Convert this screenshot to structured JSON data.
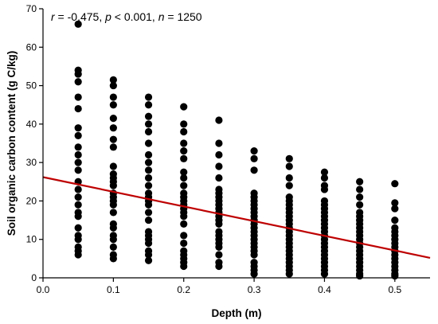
{
  "chart_data": {
    "type": "scatter",
    "title": "",
    "xlabel": "Depth (m)",
    "ylabel": "Soil organic carbon content (g C/kg)",
    "xlim": [
      0.0,
      0.55
    ],
    "ylim": [
      0,
      70
    ],
    "xticks": [
      "0.0",
      "0.1",
      "0.2",
      "0.3",
      "0.4",
      "0.5"
    ],
    "yticks": [
      "0",
      "10",
      "20",
      "30",
      "40",
      "50",
      "60",
      "70"
    ],
    "grid": false,
    "point_color": "#000000",
    "trendline": {
      "x": [
        0.0,
        0.55
      ],
      "y": [
        26.2,
        5.2
      ],
      "color": "#c00000"
    },
    "annotation": {
      "r_symbol": "r",
      "r_rest": " = -0.475, ",
      "p_symbol": "p",
      "p_rest": " < 0.001, ",
      "n_symbol": "n",
      "n_rest": " = 1250"
    },
    "points": [
      {
        "x": 0.05,
        "y": 66
      },
      {
        "x": 0.05,
        "y": 54
      },
      {
        "x": 0.05,
        "y": 53
      },
      {
        "x": 0.05,
        "y": 51
      },
      {
        "x": 0.05,
        "y": 47
      },
      {
        "x": 0.05,
        "y": 44
      },
      {
        "x": 0.05,
        "y": 39
      },
      {
        "x": 0.05,
        "y": 37
      },
      {
        "x": 0.05,
        "y": 34
      },
      {
        "x": 0.05,
        "y": 32
      },
      {
        "x": 0.05,
        "y": 30
      },
      {
        "x": 0.05,
        "y": 28
      },
      {
        "x": 0.05,
        "y": 25
      },
      {
        "x": 0.05,
        "y": 23
      },
      {
        "x": 0.05,
        "y": 21
      },
      {
        "x": 0.05,
        "y": 19
      },
      {
        "x": 0.05,
        "y": 17
      },
      {
        "x": 0.05,
        "y": 16
      },
      {
        "x": 0.05,
        "y": 13
      },
      {
        "x": 0.05,
        "y": 11
      },
      {
        "x": 0.05,
        "y": 10
      },
      {
        "x": 0.05,
        "y": 8
      },
      {
        "x": 0.05,
        "y": 7
      },
      {
        "x": 0.05,
        "y": 6
      },
      {
        "x": 0.1,
        "y": 51.5
      },
      {
        "x": 0.1,
        "y": 50
      },
      {
        "x": 0.1,
        "y": 47
      },
      {
        "x": 0.1,
        "y": 45
      },
      {
        "x": 0.1,
        "y": 41.5
      },
      {
        "x": 0.1,
        "y": 39
      },
      {
        "x": 0.1,
        "y": 36
      },
      {
        "x": 0.1,
        "y": 34
      },
      {
        "x": 0.1,
        "y": 29
      },
      {
        "x": 0.1,
        "y": 27
      },
      {
        "x": 0.1,
        "y": 26
      },
      {
        "x": 0.1,
        "y": 25
      },
      {
        "x": 0.1,
        "y": 24
      },
      {
        "x": 0.1,
        "y": 22
      },
      {
        "x": 0.1,
        "y": 21
      },
      {
        "x": 0.1,
        "y": 20
      },
      {
        "x": 0.1,
        "y": 19
      },
      {
        "x": 0.1,
        "y": 17
      },
      {
        "x": 0.1,
        "y": 14
      },
      {
        "x": 0.1,
        "y": 13
      },
      {
        "x": 0.1,
        "y": 11
      },
      {
        "x": 0.1,
        "y": 10
      },
      {
        "x": 0.1,
        "y": 8
      },
      {
        "x": 0.1,
        "y": 6
      },
      {
        "x": 0.1,
        "y": 5
      },
      {
        "x": 0.15,
        "y": 47
      },
      {
        "x": 0.15,
        "y": 45
      },
      {
        "x": 0.15,
        "y": 42
      },
      {
        "x": 0.15,
        "y": 40
      },
      {
        "x": 0.15,
        "y": 38
      },
      {
        "x": 0.15,
        "y": 35
      },
      {
        "x": 0.15,
        "y": 32
      },
      {
        "x": 0.15,
        "y": 30
      },
      {
        "x": 0.15,
        "y": 28
      },
      {
        "x": 0.15,
        "y": 26
      },
      {
        "x": 0.15,
        "y": 24
      },
      {
        "x": 0.15,
        "y": 22
      },
      {
        "x": 0.15,
        "y": 21
      },
      {
        "x": 0.15,
        "y": 20
      },
      {
        "x": 0.15,
        "y": 19
      },
      {
        "x": 0.15,
        "y": 17
      },
      {
        "x": 0.15,
        "y": 15
      },
      {
        "x": 0.15,
        "y": 12
      },
      {
        "x": 0.15,
        "y": 11
      },
      {
        "x": 0.15,
        "y": 10
      },
      {
        "x": 0.15,
        "y": 9
      },
      {
        "x": 0.15,
        "y": 7
      },
      {
        "x": 0.15,
        "y": 6
      },
      {
        "x": 0.15,
        "y": 4.5
      },
      {
        "x": 0.2,
        "y": 44.5
      },
      {
        "x": 0.2,
        "y": 40
      },
      {
        "x": 0.2,
        "y": 38
      },
      {
        "x": 0.2,
        "y": 35
      },
      {
        "x": 0.2,
        "y": 33
      },
      {
        "x": 0.2,
        "y": 31
      },
      {
        "x": 0.2,
        "y": 27.5
      },
      {
        "x": 0.2,
        "y": 26
      },
      {
        "x": 0.2,
        "y": 24
      },
      {
        "x": 0.2,
        "y": 22
      },
      {
        "x": 0.2,
        "y": 21
      },
      {
        "x": 0.2,
        "y": 20
      },
      {
        "x": 0.2,
        "y": 19
      },
      {
        "x": 0.2,
        "y": 18
      },
      {
        "x": 0.2,
        "y": 17
      },
      {
        "x": 0.2,
        "y": 16
      },
      {
        "x": 0.2,
        "y": 14
      },
      {
        "x": 0.2,
        "y": 11
      },
      {
        "x": 0.2,
        "y": 9
      },
      {
        "x": 0.2,
        "y": 7
      },
      {
        "x": 0.2,
        "y": 6
      },
      {
        "x": 0.2,
        "y": 5
      },
      {
        "x": 0.2,
        "y": 4
      },
      {
        "x": 0.2,
        "y": 3
      },
      {
        "x": 0.25,
        "y": 41
      },
      {
        "x": 0.25,
        "y": 35
      },
      {
        "x": 0.25,
        "y": 32
      },
      {
        "x": 0.25,
        "y": 29
      },
      {
        "x": 0.25,
        "y": 26
      },
      {
        "x": 0.25,
        "y": 23
      },
      {
        "x": 0.25,
        "y": 22
      },
      {
        "x": 0.25,
        "y": 21
      },
      {
        "x": 0.25,
        "y": 20
      },
      {
        "x": 0.25,
        "y": 19
      },
      {
        "x": 0.25,
        "y": 18
      },
      {
        "x": 0.25,
        "y": 17
      },
      {
        "x": 0.25,
        "y": 16
      },
      {
        "x": 0.25,
        "y": 15
      },
      {
        "x": 0.25,
        "y": 14
      },
      {
        "x": 0.25,
        "y": 12
      },
      {
        "x": 0.25,
        "y": 11
      },
      {
        "x": 0.25,
        "y": 10
      },
      {
        "x": 0.25,
        "y": 9
      },
      {
        "x": 0.25,
        "y": 8
      },
      {
        "x": 0.25,
        "y": 6
      },
      {
        "x": 0.25,
        "y": 4
      },
      {
        "x": 0.25,
        "y": 3
      },
      {
        "x": 0.3,
        "y": 33
      },
      {
        "x": 0.3,
        "y": 31
      },
      {
        "x": 0.3,
        "y": 28
      },
      {
        "x": 0.3,
        "y": 22
      },
      {
        "x": 0.3,
        "y": 21
      },
      {
        "x": 0.3,
        "y": 20
      },
      {
        "x": 0.3,
        "y": 19
      },
      {
        "x": 0.3,
        "y": 18
      },
      {
        "x": 0.3,
        "y": 17
      },
      {
        "x": 0.3,
        "y": 16
      },
      {
        "x": 0.3,
        "y": 15
      },
      {
        "x": 0.3,
        "y": 14
      },
      {
        "x": 0.3,
        "y": 13
      },
      {
        "x": 0.3,
        "y": 12
      },
      {
        "x": 0.3,
        "y": 11
      },
      {
        "x": 0.3,
        "y": 10
      },
      {
        "x": 0.3,
        "y": 9
      },
      {
        "x": 0.3,
        "y": 8
      },
      {
        "x": 0.3,
        "y": 7
      },
      {
        "x": 0.3,
        "y": 6
      },
      {
        "x": 0.3,
        "y": 4
      },
      {
        "x": 0.3,
        "y": 3
      },
      {
        "x": 0.3,
        "y": 2
      },
      {
        "x": 0.3,
        "y": 1
      },
      {
        "x": 0.35,
        "y": 31
      },
      {
        "x": 0.35,
        "y": 29
      },
      {
        "x": 0.35,
        "y": 26
      },
      {
        "x": 0.35,
        "y": 24
      },
      {
        "x": 0.35,
        "y": 21
      },
      {
        "x": 0.35,
        "y": 20
      },
      {
        "x": 0.35,
        "y": 19
      },
      {
        "x": 0.35,
        "y": 18
      },
      {
        "x": 0.35,
        "y": 17
      },
      {
        "x": 0.35,
        "y": 16
      },
      {
        "x": 0.35,
        "y": 15
      },
      {
        "x": 0.35,
        "y": 14
      },
      {
        "x": 0.35,
        "y": 13
      },
      {
        "x": 0.35,
        "y": 12
      },
      {
        "x": 0.35,
        "y": 11
      },
      {
        "x": 0.35,
        "y": 10
      },
      {
        "x": 0.35,
        "y": 9
      },
      {
        "x": 0.35,
        "y": 8
      },
      {
        "x": 0.35,
        "y": 7
      },
      {
        "x": 0.35,
        "y": 6
      },
      {
        "x": 0.35,
        "y": 5
      },
      {
        "x": 0.35,
        "y": 4
      },
      {
        "x": 0.35,
        "y": 3
      },
      {
        "x": 0.35,
        "y": 2
      },
      {
        "x": 0.35,
        "y": 1
      },
      {
        "x": 0.4,
        "y": 27.5
      },
      {
        "x": 0.4,
        "y": 26
      },
      {
        "x": 0.4,
        "y": 24
      },
      {
        "x": 0.4,
        "y": 23
      },
      {
        "x": 0.4,
        "y": 20
      },
      {
        "x": 0.4,
        "y": 19
      },
      {
        "x": 0.4,
        "y": 18
      },
      {
        "x": 0.4,
        "y": 17
      },
      {
        "x": 0.4,
        "y": 16
      },
      {
        "x": 0.4,
        "y": 15
      },
      {
        "x": 0.4,
        "y": 14
      },
      {
        "x": 0.4,
        "y": 13
      },
      {
        "x": 0.4,
        "y": 12
      },
      {
        "x": 0.4,
        "y": 11
      },
      {
        "x": 0.4,
        "y": 10
      },
      {
        "x": 0.4,
        "y": 9
      },
      {
        "x": 0.4,
        "y": 8
      },
      {
        "x": 0.4,
        "y": 7
      },
      {
        "x": 0.4,
        "y": 6
      },
      {
        "x": 0.4,
        "y": 5
      },
      {
        "x": 0.4,
        "y": 4
      },
      {
        "x": 0.4,
        "y": 3
      },
      {
        "x": 0.4,
        "y": 2
      },
      {
        "x": 0.4,
        "y": 1
      },
      {
        "x": 0.45,
        "y": 25
      },
      {
        "x": 0.45,
        "y": 23
      },
      {
        "x": 0.45,
        "y": 21
      },
      {
        "x": 0.45,
        "y": 19
      },
      {
        "x": 0.45,
        "y": 17
      },
      {
        "x": 0.45,
        "y": 16
      },
      {
        "x": 0.45,
        "y": 15
      },
      {
        "x": 0.45,
        "y": 14
      },
      {
        "x": 0.45,
        "y": 13
      },
      {
        "x": 0.45,
        "y": 12
      },
      {
        "x": 0.45,
        "y": 11
      },
      {
        "x": 0.45,
        "y": 10
      },
      {
        "x": 0.45,
        "y": 9
      },
      {
        "x": 0.45,
        "y": 8
      },
      {
        "x": 0.45,
        "y": 7
      },
      {
        "x": 0.45,
        "y": 6
      },
      {
        "x": 0.45,
        "y": 5
      },
      {
        "x": 0.45,
        "y": 4
      },
      {
        "x": 0.45,
        "y": 3
      },
      {
        "x": 0.45,
        "y": 2
      },
      {
        "x": 0.45,
        "y": 1
      },
      {
        "x": 0.45,
        "y": 0.5
      },
      {
        "x": 0.5,
        "y": 24.5
      },
      {
        "x": 0.5,
        "y": 19.5
      },
      {
        "x": 0.5,
        "y": 18
      },
      {
        "x": 0.5,
        "y": 15
      },
      {
        "x": 0.5,
        "y": 13
      },
      {
        "x": 0.5,
        "y": 12
      },
      {
        "x": 0.5,
        "y": 11
      },
      {
        "x": 0.5,
        "y": 10
      },
      {
        "x": 0.5,
        "y": 9
      },
      {
        "x": 0.5,
        "y": 8
      },
      {
        "x": 0.5,
        "y": 7
      },
      {
        "x": 0.5,
        "y": 6
      },
      {
        "x": 0.5,
        "y": 5
      },
      {
        "x": 0.5,
        "y": 4
      },
      {
        "x": 0.5,
        "y": 3
      },
      {
        "x": 0.5,
        "y": 2
      },
      {
        "x": 0.5,
        "y": 1
      },
      {
        "x": 0.5,
        "y": 0.5
      }
    ]
  }
}
